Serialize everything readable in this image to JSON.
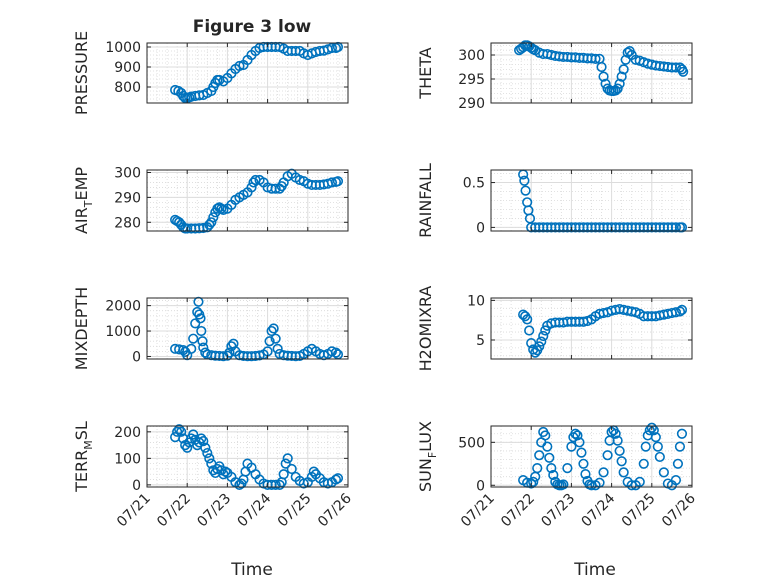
{
  "figure": {
    "title": "Figure 3 low",
    "xlabel": "Time",
    "x_ticks": [
      "07/21",
      "07/22",
      "07/23",
      "07/24",
      "07/25",
      "07/26"
    ],
    "marker_color": "#0072BD"
  },
  "chart_data": [
    {
      "type": "scatter",
      "ylabel": "PRESSURE",
      "xlim": [
        0,
        5
      ],
      "ylim": [
        720,
        1020
      ],
      "yticks": [
        800,
        900,
        1000
      ],
      "series": [
        {
          "x": [
            0.7,
            0.78,
            0.85,
            0.9,
            0.95,
            1.0,
            1.05,
            1.1,
            1.2,
            1.3,
            1.4,
            1.5,
            1.6,
            1.65,
            1.7,
            1.75,
            1.8,
            1.9,
            2.0,
            2.1,
            2.2,
            2.3,
            2.4,
            2.5,
            2.6,
            2.7,
            2.8,
            2.9,
            3.0,
            3.1,
            3.2,
            3.3,
            3.4,
            3.5,
            3.6,
            3.7,
            3.8,
            3.9,
            4.0,
            4.1,
            4.2,
            4.3,
            4.4,
            4.5,
            4.6,
            4.7,
            4.75
          ],
          "y": [
            785,
            780,
            770,
            755,
            745,
            745,
            748,
            752,
            755,
            758,
            760,
            770,
            780,
            800,
            820,
            835,
            835,
            828,
            845,
            868,
            890,
            905,
            910,
            935,
            960,
            980,
            995,
            1000,
            1000,
            1000,
            1000,
            1000,
            992,
            980,
            980,
            980,
            980,
            968,
            960,
            968,
            975,
            980,
            982,
            988,
            995,
            995,
            1000
          ]
        }
      ]
    },
    {
      "type": "scatter",
      "ylabel": "THETA",
      "xlim": [
        0,
        5
      ],
      "ylim": [
        290,
        302.5
      ],
      "yticks": [
        290,
        295,
        300
      ],
      "series": [
        {
          "x": [
            0.7,
            0.75,
            0.8,
            0.85,
            0.9,
            0.95,
            1.0,
            1.05,
            1.1,
            1.2,
            1.3,
            1.4,
            1.5,
            1.6,
            1.7,
            1.8,
            1.9,
            2.0,
            2.1,
            2.2,
            2.3,
            2.4,
            2.5,
            2.6,
            2.7,
            2.75,
            2.8,
            2.85,
            2.9,
            2.95,
            3.0,
            3.05,
            3.1,
            3.15,
            3.2,
            3.25,
            3.3,
            3.35,
            3.4,
            3.45,
            3.5,
            3.6,
            3.7,
            3.8,
            3.9,
            4.0,
            4.1,
            4.2,
            4.3,
            4.4,
            4.5,
            4.6,
            4.7,
            4.75,
            4.78
          ],
          "y": [
            301,
            301.3,
            301.6,
            302,
            302,
            301.8,
            301.5,
            301.2,
            301,
            300.5,
            300.2,
            300.2,
            300,
            299.8,
            299.7,
            299.6,
            299.6,
            299.5,
            299.5,
            299.4,
            299.4,
            299.3,
            299.3,
            299.2,
            299.2,
            297.5,
            295.5,
            294,
            293,
            292.6,
            292.5,
            292.5,
            292.6,
            293,
            294,
            295.5,
            297,
            299,
            300.5,
            300.8,
            300,
            299,
            298.8,
            298.5,
            298.2,
            298,
            297.8,
            297.7,
            297.6,
            297.5,
            297.4,
            297.4,
            297.4,
            297,
            296.5
          ]
        }
      ]
    },
    {
      "type": "scatter",
      "ylabel": "AIR_TEMP",
      "xlim": [
        0,
        5
      ],
      "ylim": [
        276.5,
        301
      ],
      "yticks": [
        280,
        290,
        300
      ],
      "series": [
        {
          "x": [
            0.7,
            0.75,
            0.8,
            0.85,
            0.9,
            0.95,
            1.0,
            1.1,
            1.2,
            1.3,
            1.4,
            1.5,
            1.55,
            1.6,
            1.65,
            1.7,
            1.75,
            1.8,
            1.85,
            1.9,
            2.0,
            2.1,
            2.2,
            2.3,
            2.4,
            2.5,
            2.6,
            2.65,
            2.7,
            2.8,
            2.9,
            3.0,
            3.1,
            3.2,
            3.3,
            3.35,
            3.4,
            3.5,
            3.6,
            3.7,
            3.8,
            3.9,
            4.0,
            4.1,
            4.2,
            4.3,
            4.4,
            4.5,
            4.6,
            4.7,
            4.75
          ],
          "y": [
            281,
            280.5,
            280,
            279,
            278,
            277.5,
            277.5,
            277.5,
            277.5,
            277.6,
            277.7,
            278,
            279,
            280,
            282,
            284,
            285.5,
            286,
            285.5,
            285,
            285.5,
            287,
            289,
            290,
            291,
            292,
            294,
            296,
            297,
            297,
            296,
            294,
            293.5,
            293.5,
            293.5,
            294.5,
            296,
            298.5,
            299.5,
            298,
            297,
            296.5,
            295.5,
            295,
            295,
            295,
            295.2,
            295.5,
            296,
            296.2,
            296.5
          ]
        }
      ]
    },
    {
      "type": "scatter",
      "ylabel": "RAINFALL",
      "xlim": [
        0,
        5
      ],
      "ylim": [
        -0.04,
        0.64
      ],
      "yticks": [
        0,
        0.5
      ],
      "series": [
        {
          "x": [
            0.8,
            0.83,
            0.86,
            0.9,
            0.93,
            0.97,
            1.0,
            1.1,
            1.2,
            1.3,
            1.4,
            1.5,
            1.6,
            1.7,
            1.8,
            1.9,
            2.0,
            2.1,
            2.2,
            2.3,
            2.4,
            2.5,
            2.6,
            2.7,
            2.8,
            2.9,
            3.0,
            3.1,
            3.2,
            3.3,
            3.4,
            3.5,
            3.6,
            3.7,
            3.8,
            3.9,
            4.0,
            4.1,
            4.2,
            4.3,
            4.4,
            4.5,
            4.6,
            4.7,
            4.75
          ],
          "y": [
            0.59,
            0.52,
            0.41,
            0.28,
            0.19,
            0.1,
            0,
            0,
            0,
            0,
            0,
            0,
            0,
            0,
            0,
            0,
            0,
            0,
            0,
            0,
            0,
            0,
            0,
            0,
            0,
            0,
            0,
            0,
            0,
            0,
            0,
            0,
            0,
            0,
            0,
            0,
            0,
            0,
            0,
            0,
            0,
            0,
            0,
            0,
            0
          ]
        }
      ]
    },
    {
      "type": "scatter",
      "ylabel": "MIXDEPTH",
      "xlim": [
        0,
        5
      ],
      "ylim": [
        -100,
        2300
      ],
      "yticks": [
        0,
        1000,
        2000
      ],
      "series": [
        {
          "x": [
            0.7,
            0.8,
            0.9,
            0.95,
            1.0,
            1.1,
            1.15,
            1.2,
            1.25,
            1.28,
            1.3,
            1.33,
            1.35,
            1.38,
            1.4,
            1.45,
            1.5,
            1.6,
            1.7,
            1.8,
            1.9,
            2.0,
            2.05,
            2.1,
            2.15,
            2.2,
            2.3,
            2.4,
            2.5,
            2.6,
            2.7,
            2.8,
            2.9,
            3.0,
            3.05,
            3.1,
            3.15,
            3.2,
            3.25,
            3.3,
            3.4,
            3.5,
            3.6,
            3.7,
            3.8,
            3.9,
            4.0,
            4.1,
            4.2,
            4.3,
            4.4,
            4.5,
            4.6,
            4.7,
            4.75
          ],
          "y": [
            300,
            280,
            250,
            180,
            50,
            300,
            700,
            1300,
            1750,
            2150,
            1650,
            1500,
            1000,
            600,
            350,
            150,
            80,
            50,
            30,
            20,
            10,
            30,
            150,
            400,
            500,
            200,
            50,
            20,
            10,
            10,
            20,
            40,
            80,
            200,
            600,
            1000,
            1100,
            700,
            300,
            100,
            50,
            30,
            20,
            10,
            20,
            100,
            200,
            300,
            200,
            100,
            50,
            100,
            200,
            150,
            80
          ]
        }
      ]
    },
    {
      "type": "scatter",
      "ylabel": "H2OMIXRA",
      "xlim": [
        0,
        5
      ],
      "ylim": [
        2.6,
        10.3
      ],
      "yticks": [
        5,
        10
      ],
      "series": [
        {
          "x": [
            0.8,
            0.85,
            0.9,
            0.95,
            1.0,
            1.05,
            1.1,
            1.15,
            1.2,
            1.25,
            1.3,
            1.35,
            1.4,
            1.5,
            1.6,
            1.7,
            1.8,
            1.9,
            2.0,
            2.1,
            2.2,
            2.3,
            2.4,
            2.5,
            2.6,
            2.7,
            2.8,
            2.9,
            3.0,
            3.1,
            3.2,
            3.3,
            3.4,
            3.5,
            3.6,
            3.7,
            3.8,
            3.9,
            4.0,
            4.1,
            4.2,
            4.3,
            4.4,
            4.5,
            4.6,
            4.7,
            4.75
          ],
          "y": [
            8.2,
            8.0,
            7.6,
            6.2,
            4.6,
            3.8,
            3.4,
            3.7,
            4.2,
            4.8,
            5.5,
            6.2,
            6.8,
            7.1,
            7.2,
            7.2,
            7.2,
            7.3,
            7.3,
            7.3,
            7.3,
            7.3,
            7.4,
            7.6,
            8.0,
            8.3,
            8.4,
            8.5,
            8.7,
            8.8,
            8.9,
            8.8,
            8.7,
            8.6,
            8.5,
            8.3,
            8.0,
            8.0,
            8.0,
            8.0,
            8.1,
            8.2,
            8.3,
            8.4,
            8.5,
            8.6,
            8.8
          ]
        }
      ]
    },
    {
      "type": "scatter",
      "ylabel": "TERR_MSL",
      "xlim": [
        0,
        5
      ],
      "ylim": [
        -8,
        222
      ],
      "yticks": [
        0,
        100,
        200
      ],
      "series": [
        {
          "x": [
            0.7,
            0.75,
            0.8,
            0.85,
            0.9,
            0.95,
            1.0,
            1.05,
            1.1,
            1.15,
            1.2,
            1.25,
            1.3,
            1.35,
            1.4,
            1.45,
            1.5,
            1.55,
            1.6,
            1.65,
            1.7,
            1.75,
            1.8,
            1.85,
            1.9,
            1.95,
            2.0,
            2.1,
            2.2,
            2.3,
            2.35,
            2.4,
            2.45,
            2.5,
            2.6,
            2.7,
            2.8,
            2.9,
            3.0,
            3.1,
            3.2,
            3.3,
            3.35,
            3.4,
            3.45,
            3.5,
            3.6,
            3.7,
            3.8,
            3.9,
            4.0,
            4.1,
            4.15,
            4.2,
            4.3,
            4.4,
            4.5,
            4.6,
            4.7,
            4.75
          ],
          "y": [
            180,
            200,
            210,
            200,
            175,
            150,
            140,
            160,
            175,
            190,
            170,
            150,
            160,
            175,
            165,
            140,
            120,
            100,
            80,
            55,
            45,
            60,
            70,
            55,
            40,
            50,
            45,
            30,
            10,
            0,
            5,
            20,
            50,
            80,
            65,
            40,
            20,
            5,
            0,
            0,
            0,
            0,
            10,
            40,
            80,
            100,
            60,
            30,
            15,
            5,
            10,
            30,
            50,
            40,
            25,
            10,
            5,
            10,
            20,
            25
          ]
        }
      ]
    },
    {
      "type": "scatter",
      "ylabel": "SUN_FLUX",
      "xlim": [
        0,
        5
      ],
      "ylim": [
        -20,
        690
      ],
      "yticks": [
        0,
        500
      ],
      "series": [
        {
          "x": [
            0.8,
            0.9,
            1.0,
            1.05,
            1.1,
            1.15,
            1.2,
            1.25,
            1.3,
            1.35,
            1.4,
            1.45,
            1.5,
            1.55,
            1.6,
            1.65,
            1.7,
            1.75,
            1.8,
            1.9,
            2.0,
            2.05,
            2.1,
            2.15,
            2.2,
            2.25,
            2.3,
            2.35,
            2.4,
            2.45,
            2.5,
            2.6,
            2.7,
            2.8,
            2.9,
            2.95,
            3.0,
            3.05,
            3.1,
            3.15,
            3.2,
            3.25,
            3.3,
            3.4,
            3.5,
            3.6,
            3.7,
            3.8,
            3.85,
            3.9,
            3.95,
            4.0,
            4.05,
            4.1,
            4.15,
            4.2,
            4.3,
            4.4,
            4.5,
            4.6,
            4.65,
            4.7,
            4.75
          ],
          "y": [
            60,
            30,
            20,
            40,
            100,
            200,
            350,
            500,
            620,
            580,
            450,
            320,
            200,
            120,
            40,
            10,
            0,
            0,
            10,
            200,
            450,
            560,
            600,
            580,
            500,
            380,
            250,
            130,
            50,
            10,
            0,
            0,
            30,
            150,
            350,
            520,
            620,
            640,
            600,
            520,
            400,
            280,
            150,
            40,
            0,
            0,
            40,
            250,
            450,
            580,
            640,
            670,
            640,
            560,
            450,
            330,
            150,
            20,
            0,
            60,
            250,
            450,
            600
          ]
        }
      ]
    }
  ]
}
